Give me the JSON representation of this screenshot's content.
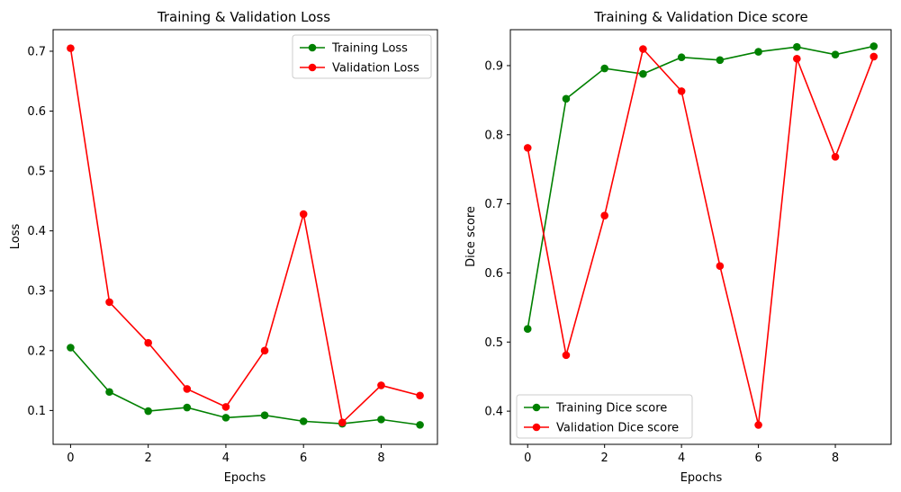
{
  "chart_data": [
    {
      "type": "line",
      "title": "Training & Validation Loss",
      "xlabel": "Epochs",
      "ylabel": "Loss",
      "xlim": [
        -0.45,
        9.45
      ],
      "ylim": [
        0.0435,
        0.736
      ],
      "xticks": [
        0,
        2,
        4,
        6,
        8
      ],
      "yticks": [
        0.1,
        0.2,
        0.3,
        0.4,
        0.5,
        0.6,
        0.7
      ],
      "x": [
        0,
        1,
        2,
        3,
        4,
        5,
        6,
        7,
        8,
        9
      ],
      "legend_position": "upper right",
      "grid": false,
      "series": [
        {
          "name": "Training Loss",
          "color": "#008000",
          "values": [
            0.205,
            0.131,
            0.099,
            0.105,
            0.088,
            0.092,
            0.082,
            0.078,
            0.085,
            0.076
          ]
        },
        {
          "name": "Validation Loss",
          "color": "#ff0000",
          "values": [
            0.705,
            0.281,
            0.213,
            0.136,
            0.106,
            0.2,
            0.428,
            0.08,
            0.142,
            0.125
          ]
        }
      ]
    },
    {
      "type": "line",
      "title": "Training & Validation Dice score",
      "xlabel": "Epochs",
      "ylabel": "Dice score",
      "xlim": [
        -0.45,
        9.45
      ],
      "ylim": [
        0.352,
        0.952
      ],
      "xticks": [
        0,
        2,
        4,
        6,
        8
      ],
      "yticks": [
        0.4,
        0.5,
        0.6,
        0.7,
        0.8,
        0.9
      ],
      "x": [
        0,
        1,
        2,
        3,
        4,
        5,
        6,
        7,
        8,
        9
      ],
      "legend_position": "lower left",
      "grid": false,
      "series": [
        {
          "name": "Training Dice score",
          "color": "#008000",
          "values": [
            0.519,
            0.852,
            0.896,
            0.888,
            0.912,
            0.908,
            0.92,
            0.927,
            0.916,
            0.928
          ]
        },
        {
          "name": "Validation Dice score",
          "color": "#ff0000",
          "values": [
            0.781,
            0.481,
            0.683,
            0.924,
            0.863,
            0.61,
            0.38,
            0.91,
            0.768,
            0.913
          ]
        }
      ]
    }
  ]
}
